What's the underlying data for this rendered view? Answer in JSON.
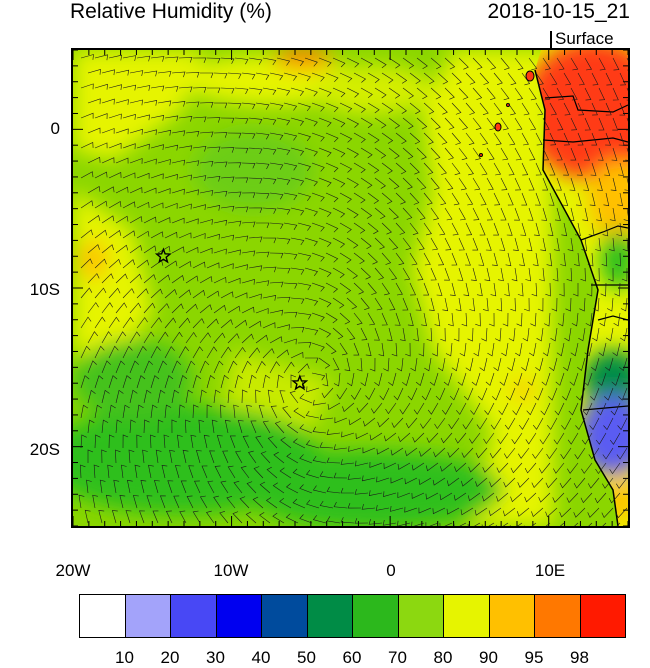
{
  "header": {
    "title_left": "Relative Humidity (%)",
    "title_right": "2018-10-15_21",
    "level": "Surface"
  },
  "map": {
    "region": "Southeast Atlantic / West Africa coast",
    "lon_range": [
      -20,
      15
    ],
    "lat_range": [
      -25,
      5
    ],
    "lon_labels": [
      "20W",
      "10W",
      "0",
      "10E"
    ],
    "lat_labels": [
      "0",
      "10S",
      "20S"
    ],
    "field": "relative humidity",
    "overlay": "wind barbs",
    "markers": [
      {
        "name": "star-marker-1",
        "lon": -14.3,
        "lat": -8.0,
        "symbol": "star"
      },
      {
        "name": "star-marker-2",
        "lon": -5.7,
        "lat": -16.0,
        "symbol": "star"
      }
    ],
    "colors": {
      "ocean_dominant": "#8bd600",
      "ocean_moist": "#e6f400",
      "ocean_drier": "#2fbf1c",
      "land_humid": "#ff3a12",
      "land_dry": "#5a5cf2"
    }
  },
  "colorbar": {
    "labels": [
      "10",
      "20",
      "30",
      "40",
      "50",
      "60",
      "70",
      "80",
      "90",
      "95",
      "98"
    ],
    "colors": [
      "#ffffff",
      "#a3a3fa",
      "#4848f5",
      "#0000f0",
      "#004b9d",
      "#008c46",
      "#2cb81c",
      "#8cd810",
      "#e6f400",
      "#ffc000",
      "#ff7800",
      "#ff1a00"
    ]
  }
}
